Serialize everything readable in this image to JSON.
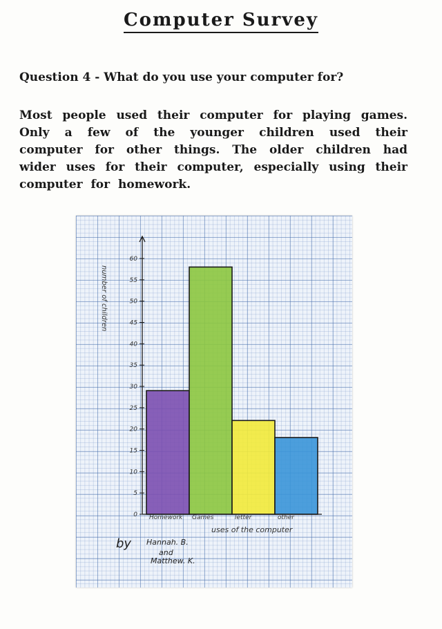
{
  "page": {
    "title": "Computer Survey",
    "question": "Question 4 - What do you use your computer for?",
    "paragraph": "Most people used their computer for playing games. Only a few of the younger children used their computer for other things. The older children had wider uses for their computer, especially using their computer for homework.",
    "credit": {
      "by": "by",
      "name1": "Hannah. B.",
      "and": "and",
      "name2": "Matthew. K."
    }
  },
  "chart_data": {
    "type": "bar",
    "categories": [
      "Homework",
      "Games",
      "letter",
      "other"
    ],
    "values": [
      29,
      58,
      22,
      18
    ],
    "colors": [
      "#7b4fb0",
      "#8cc63f",
      "#f2ea3a",
      "#3a95d8"
    ],
    "title": "",
    "xlabel": "uses of the computer",
    "ylabel": "number of children",
    "ylim": [
      0,
      60
    ],
    "yticks": [
      0,
      5,
      10,
      15,
      20,
      25,
      30,
      35,
      40,
      45,
      50,
      55,
      60
    ],
    "grid": true
  }
}
